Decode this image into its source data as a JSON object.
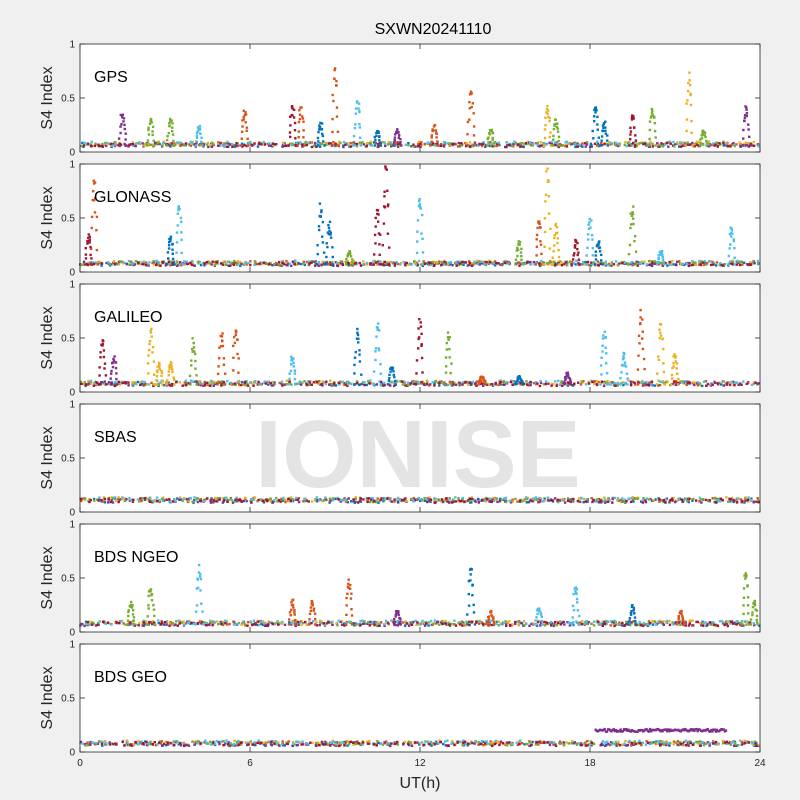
{
  "chart_data": {
    "type": "scatter",
    "title": "SXWN20241110",
    "xlabel": "UT(h)",
    "xlim": [
      0,
      24
    ],
    "xticks": [
      "0",
      "6",
      "12",
      "18",
      "24"
    ],
    "watermark": "IONISE",
    "colors": [
      "#0072BD",
      "#D95319",
      "#EDB120",
      "#7E2F8E",
      "#77AC30",
      "#4DBEEE",
      "#A2142F"
    ],
    "panels": [
      {
        "label": "GPS",
        "ylabel": "S4 Index",
        "ylim": [
          0,
          1
        ],
        "yticks": [
          "0",
          "0.5",
          "1"
        ],
        "baseline": 0.06,
        "spikes": [
          [
            1.5,
            0.4,
            3
          ],
          [
            2.5,
            0.32,
            4
          ],
          [
            3.2,
            0.31,
            4
          ],
          [
            4.2,
            0.25,
            5
          ],
          [
            5.8,
            0.4,
            1
          ],
          [
            7.5,
            0.45,
            6
          ],
          [
            7.8,
            0.44,
            1
          ],
          [
            8.5,
            0.28,
            0
          ],
          [
            9.0,
            0.83,
            1
          ],
          [
            9.8,
            0.5,
            5
          ],
          [
            10.5,
            0.2,
            0
          ],
          [
            11.2,
            0.22,
            3
          ],
          [
            12.5,
            0.25,
            1
          ],
          [
            13.8,
            0.6,
            1
          ],
          [
            14.5,
            0.22,
            4
          ],
          [
            16.5,
            0.45,
            2
          ],
          [
            16.8,
            0.32,
            4
          ],
          [
            18.2,
            0.45,
            0
          ],
          [
            18.5,
            0.3,
            0
          ],
          [
            19.5,
            0.35,
            6
          ],
          [
            20.2,
            0.45,
            4
          ],
          [
            21.5,
            0.74,
            2
          ],
          [
            22.0,
            0.2,
            4
          ],
          [
            23.5,
            0.45,
            3
          ]
        ]
      },
      {
        "label": "GLONASS",
        "ylabel": "S4 Index",
        "ylim": [
          0,
          1
        ],
        "yticks": [
          "0",
          "0.5",
          "1"
        ],
        "baseline": 0.07,
        "spikes": [
          [
            0.5,
            0.9,
            1
          ],
          [
            0.3,
            0.35,
            6
          ],
          [
            3.5,
            0.68,
            5
          ],
          [
            3.2,
            0.35,
            0
          ],
          [
            8.5,
            0.65,
            0
          ],
          [
            8.8,
            0.5,
            0
          ],
          [
            9.5,
            0.2,
            4
          ],
          [
            10.5,
            0.58,
            6
          ],
          [
            10.8,
            1.0,
            6
          ],
          [
            12.0,
            0.7,
            5
          ],
          [
            15.5,
            0.3,
            4
          ],
          [
            16.2,
            0.55,
            1
          ],
          [
            16.5,
            0.98,
            2
          ],
          [
            16.8,
            0.45,
            2
          ],
          [
            17.5,
            0.3,
            6
          ],
          [
            18.0,
            0.5,
            5
          ],
          [
            18.3,
            0.3,
            0
          ],
          [
            19.5,
            0.65,
            4
          ],
          [
            20.5,
            0.2,
            5
          ],
          [
            23.0,
            0.45,
            5
          ]
        ]
      },
      {
        "label": "GALILEO",
        "ylabel": "S4 Index",
        "ylim": [
          0,
          1
        ],
        "yticks": [
          "0",
          "0.5",
          "1"
        ],
        "baseline": 0.07,
        "spikes": [
          [
            0.8,
            0.5,
            6
          ],
          [
            1.2,
            0.35,
            3
          ],
          [
            2.5,
            0.63,
            2
          ],
          [
            2.8,
            0.28,
            2
          ],
          [
            3.2,
            0.28,
            2
          ],
          [
            4.0,
            0.52,
            4
          ],
          [
            5.0,
            0.6,
            1
          ],
          [
            5.5,
            0.7,
            1
          ],
          [
            7.5,
            0.35,
            5
          ],
          [
            9.8,
            0.6,
            0
          ],
          [
            10.5,
            0.65,
            5
          ],
          [
            11.0,
            0.25,
            0
          ],
          [
            12.0,
            0.68,
            6
          ],
          [
            13.0,
            0.62,
            4
          ],
          [
            14.2,
            0.15,
            1
          ],
          [
            15.5,
            0.15,
            0
          ],
          [
            17.2,
            0.18,
            3
          ],
          [
            18.5,
            0.6,
            5
          ],
          [
            19.2,
            0.38,
            5
          ],
          [
            19.8,
            0.78,
            1
          ],
          [
            20.5,
            0.65,
            2
          ],
          [
            21.0,
            0.35,
            2
          ]
        ]
      },
      {
        "label": "SBAS",
        "ylabel": "S4 Index",
        "ylim": [
          0,
          1
        ],
        "yticks": [
          "0",
          "0.5",
          "1"
        ],
        "baseline": 0.1,
        "spikes": []
      },
      {
        "label": "BDS NGEO",
        "ylabel": "S4 Index",
        "ylim": [
          0,
          1
        ],
        "yticks": [
          "0",
          "0.5",
          "1"
        ],
        "baseline": 0.07,
        "spikes": [
          [
            1.8,
            0.28,
            4
          ],
          [
            2.5,
            0.45,
            4
          ],
          [
            4.2,
            0.65,
            5
          ],
          [
            7.5,
            0.3,
            1
          ],
          [
            8.2,
            0.32,
            1
          ],
          [
            9.5,
            0.52,
            1
          ],
          [
            11.2,
            0.2,
            3
          ],
          [
            13.8,
            0.62,
            0
          ],
          [
            14.5,
            0.2,
            1
          ],
          [
            16.2,
            0.25,
            5
          ],
          [
            17.5,
            0.45,
            5
          ],
          [
            19.5,
            0.25,
            0
          ],
          [
            21.2,
            0.2,
            1
          ],
          [
            23.5,
            0.6,
            4
          ],
          [
            23.8,
            0.3,
            4
          ]
        ]
      },
      {
        "label": "BDS GEO",
        "ylabel": "S4 Index",
        "ylim": [
          0,
          1
        ],
        "yticks": [
          "0",
          "0.5",
          "1"
        ],
        "baseline": 0.07,
        "spikes": [],
        "segment": {
          "x0": 18.2,
          "x1": 22.8,
          "y": 0.2,
          "color": 3
        }
      }
    ]
  }
}
